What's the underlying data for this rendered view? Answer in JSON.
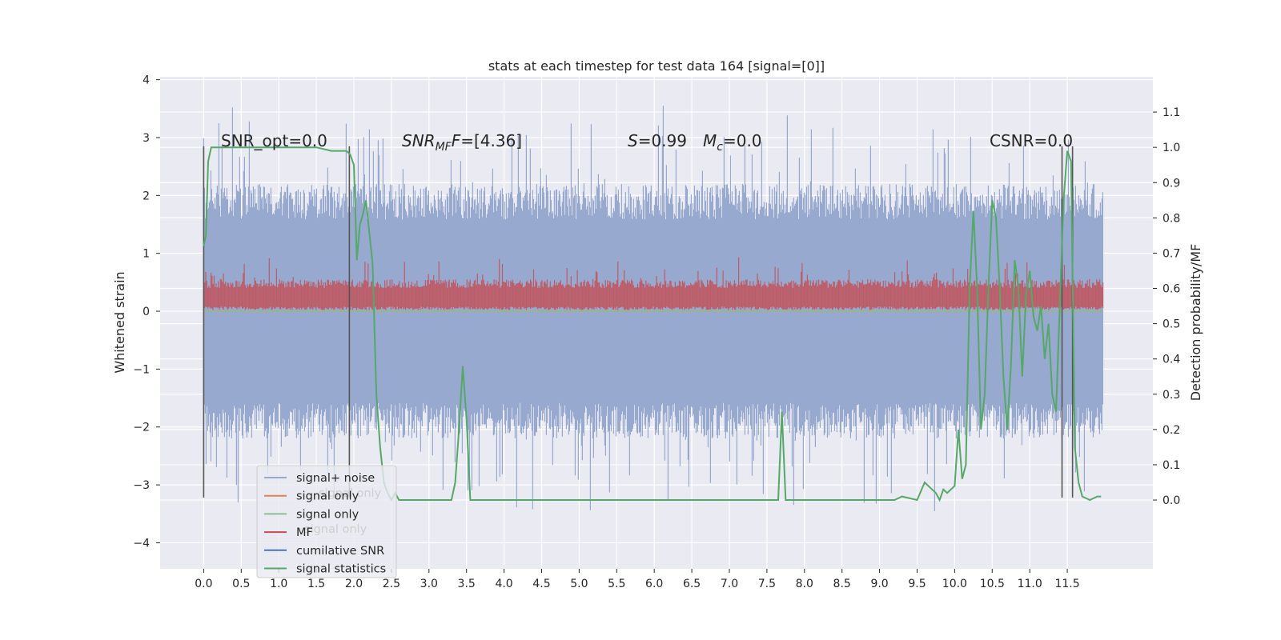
{
  "chart_data": {
    "type": "line",
    "title": "stats at each timestep for test data 164 [signal=[0]]",
    "ylabel": "Whitened strain",
    "y2label": "Detection probability/MF",
    "xlim": [
      -0.58,
      12.64
    ],
    "ylim": [
      -4.45,
      4.05
    ],
    "y2lim": [
      -0.195,
      1.2
    ],
    "xticks": [
      "0.0",
      "0.5",
      "1.0",
      "1.5",
      "2.0",
      "2.5",
      "3.0",
      "3.5",
      "4.0",
      "4.5",
      "5.0",
      "5.5",
      "6.0",
      "6.5",
      "7.0",
      "7.5",
      "8.0",
      "8.5",
      "9.0",
      "9.5",
      "10.0",
      "10.5",
      "11.0",
      "11.5"
    ],
    "yticks": [
      "4",
      "3",
      "2",
      "1",
      "0",
      "−1",
      "−2",
      "−3",
      "−4"
    ],
    "y2ticks": [
      "0.0",
      "0.1",
      "0.2",
      "0.3",
      "0.4",
      "0.5",
      "0.6",
      "0.7",
      "0.8",
      "0.9",
      "1.0",
      "1.1"
    ],
    "grid": true,
    "legend_position": "lower left",
    "annotations": {
      "snr_opt": "SNR_opt=0.0",
      "snr_mf_main": "SNR",
      "snr_mf_sub": "MF",
      "snr_mf_val": "=[4.36]",
      "s_main": "S",
      "s_val": "=0.99",
      "mc_main": "M",
      "mc_sub": "c",
      "mc_val": "=0.0",
      "csnr": "CSNR=0.0"
    },
    "legend": [
      {
        "label": "signal+ noise",
        "color": "#98a9d0"
      },
      {
        "label": "signal only",
        "color": "#dd8452"
      },
      {
        "label": "signal only",
        "color": "#8cc08e"
      },
      {
        "label": "MF",
        "color": "#c44e52"
      },
      {
        "label": "cumilative SNR",
        "color": "#4c72b0"
      },
      {
        "label": "signal statistics",
        "color": "#55a868"
      }
    ],
    "legend_ghost": [
      {
        "label": "signal+ noise"
      },
      {
        "label": "signal only"
      }
    ],
    "vlines_x": [
      0.0,
      1.94,
      11.43,
      11.57
    ],
    "vline_range": [
      -3.22,
      2.85
    ],
    "series": [
      {
        "name": "signal+ noise",
        "color": "#98a9d0",
        "axis": "left",
        "x_range": [
          0.0,
          11.98
        ],
        "band": [
          -2.2,
          2.2
        ]
      },
      {
        "name": "signal only",
        "color": "#dd8452",
        "axis": "left",
        "constant": 0.0
      },
      {
        "name": "signal only",
        "color": "#8cc08e",
        "axis": "left",
        "constant": 0.0
      },
      {
        "name": "MF",
        "color": "#c44e52",
        "axis": "left",
        "x_range": [
          0.0,
          11.98
        ],
        "band": [
          0.0,
          0.55
        ]
      },
      {
        "name": "signal statistics",
        "color": "#55a868",
        "axis": "right",
        "x": [
          0.0,
          0.03,
          0.06,
          0.1,
          0.3,
          0.6,
          0.9,
          1.2,
          1.5,
          1.7,
          1.8,
          1.9,
          1.95,
          2.0,
          2.04,
          2.08,
          2.12,
          2.16,
          2.2,
          2.25,
          2.3,
          2.35,
          2.4,
          2.45,
          2.5,
          2.55,
          2.6,
          2.7,
          3.0,
          3.2,
          3.3,
          3.35,
          3.4,
          3.45,
          3.5,
          3.55,
          3.6,
          4.0,
          5.0,
          6.0,
          7.0,
          7.5,
          7.58,
          7.65,
          7.7,
          7.75,
          7.8,
          7.9,
          8.0,
          8.3,
          8.5,
          9.0,
          9.2,
          9.3,
          9.5,
          9.6,
          9.7,
          9.75,
          9.8,
          9.85,
          9.9,
          9.95,
          10.0,
          10.05,
          10.1,
          10.15,
          10.2,
          10.25,
          10.3,
          10.35,
          10.4,
          10.45,
          10.5,
          10.55,
          10.6,
          10.65,
          10.7,
          10.75,
          10.8,
          10.85,
          10.9,
          10.95,
          11.0,
          11.05,
          11.1,
          11.15,
          11.2,
          11.25,
          11.3,
          11.35,
          11.4,
          11.45,
          11.5,
          11.55,
          11.6,
          11.65,
          11.7,
          11.8,
          11.9,
          11.95
        ],
        "y": [
          0.72,
          0.75,
          0.96,
          1.0,
          1.0,
          1.0,
          1.0,
          1.0,
          1.0,
          0.99,
          0.99,
          0.99,
          0.98,
          0.95,
          0.68,
          0.78,
          0.81,
          0.85,
          0.77,
          0.67,
          0.3,
          0.15,
          0.05,
          0.02,
          0.0,
          0.02,
          0.0,
          0.0,
          0.0,
          0.0,
          0.0,
          0.05,
          0.2,
          0.38,
          0.23,
          0.0,
          0.0,
          0.0,
          0.0,
          0.0,
          0.0,
          0.0,
          0.0,
          0.0,
          0.25,
          0.0,
          0.0,
          0.0,
          0.0,
          0.0,
          0.0,
          0.0,
          0.0,
          0.01,
          0.0,
          0.05,
          0.03,
          0.02,
          0.0,
          0.03,
          0.02,
          0.03,
          0.04,
          0.2,
          0.06,
          0.1,
          0.6,
          0.82,
          0.6,
          0.2,
          0.3,
          0.6,
          0.85,
          0.8,
          0.6,
          0.35,
          0.2,
          0.38,
          0.68,
          0.6,
          0.35,
          0.58,
          0.65,
          0.52,
          0.48,
          0.55,
          0.4,
          0.5,
          0.3,
          0.25,
          0.55,
          0.85,
          0.99,
          0.96,
          0.15,
          0.05,
          0.01,
          0.0,
          0.01,
          0.01
        ]
      }
    ]
  }
}
